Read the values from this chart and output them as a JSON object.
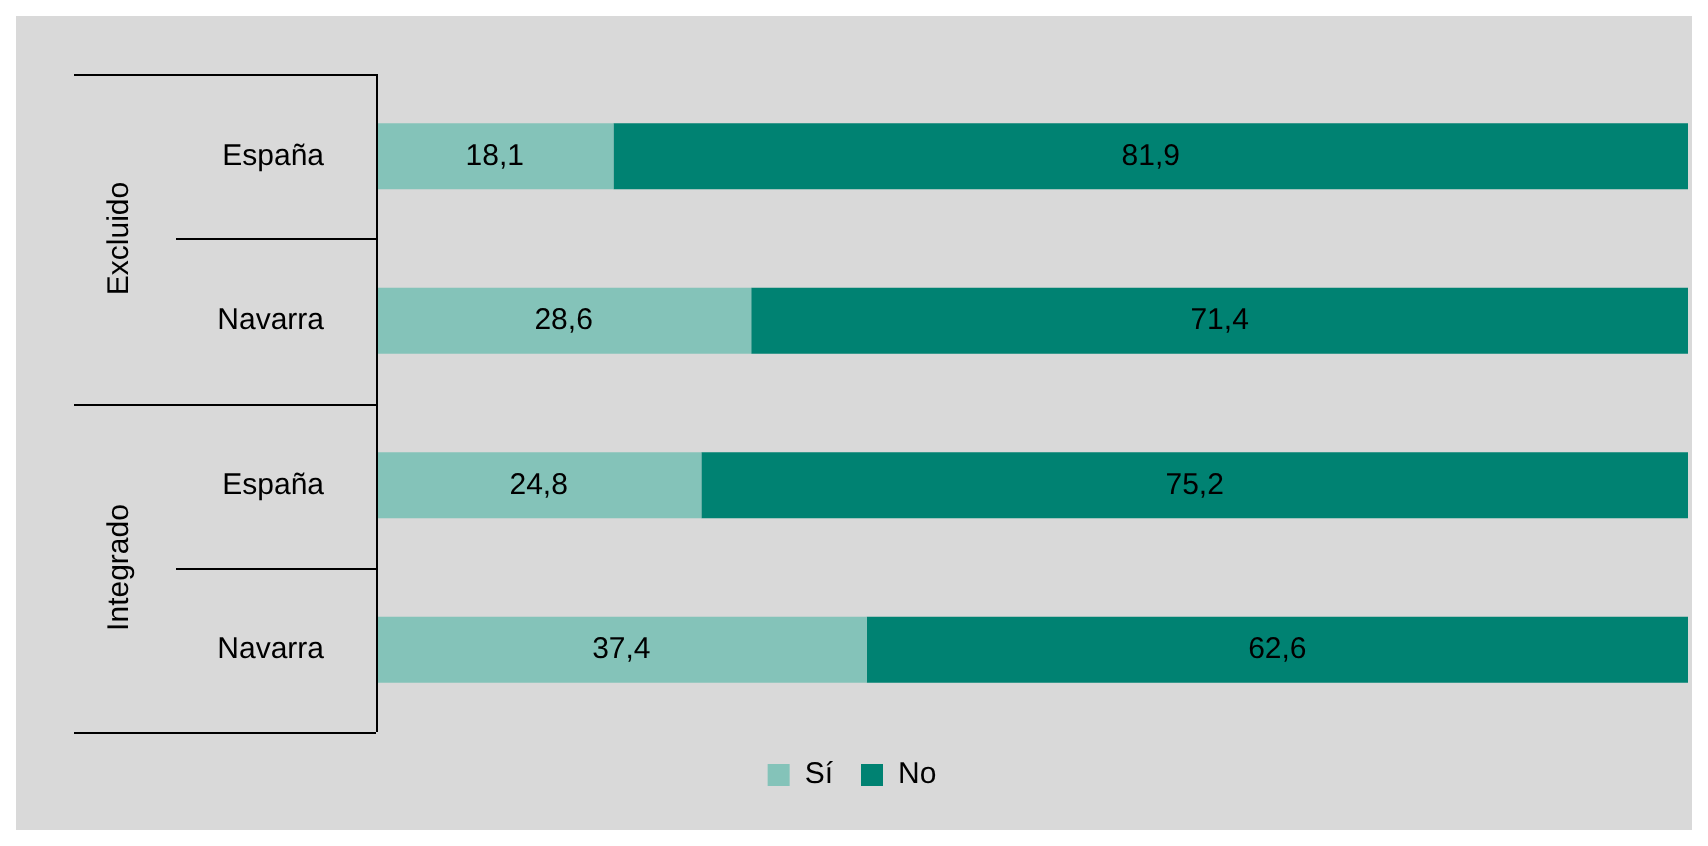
{
  "chart_data": {
    "type": "bar",
    "orientation": "horizontal",
    "stacked": true,
    "categories": [
      "España",
      "Navarra",
      "España",
      "Navarra"
    ],
    "series": [
      {
        "name": "Sí",
        "color": "#84c3b9",
        "values": [
          18.1,
          28.6,
          24.8,
          37.4
        ],
        "value_labels": [
          "18,1",
          "28,6",
          "24,8",
          "37,4"
        ]
      },
      {
        "name": "No",
        "color": "#008272",
        "values": [
          81.9,
          71.4,
          75.2,
          62.6
        ],
        "value_labels": [
          "81,9",
          "71,4",
          "75,2",
          "62,6"
        ]
      }
    ],
    "tick_labels": "y",
    "legend": "bottom",
    "annotations": [
      "Excluido",
      "Integrado"
    ]
  }
}
